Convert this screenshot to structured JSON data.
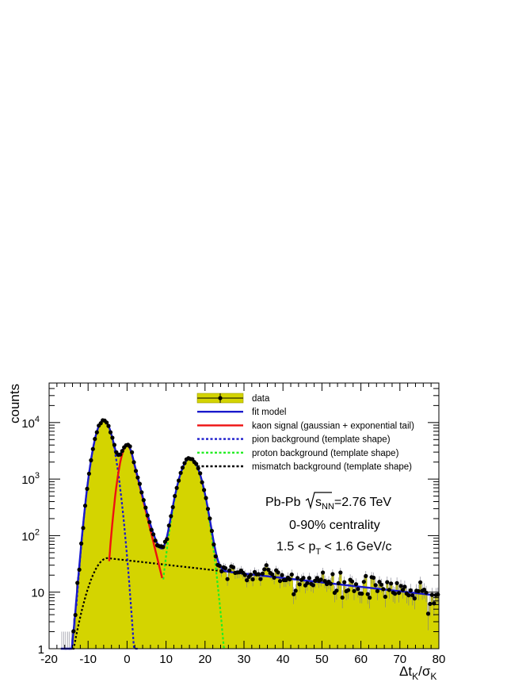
{
  "chart_data": {
    "type": "line",
    "ylabel": "counts",
    "xlabel": {
      "base": "Δt",
      "sub1": "K",
      "mid": "/σ",
      "sub2": "K"
    },
    "xlim": [
      -20,
      80
    ],
    "ylim": [
      1,
      50000
    ],
    "yscale": "log",
    "x_ticks": [
      "-20",
      "-10",
      "0",
      "10",
      "20",
      "30",
      "40",
      "50",
      "60",
      "70",
      "80"
    ],
    "y_ticks": [
      {
        "value": 1,
        "label": "1"
      },
      {
        "value": 10,
        "label": "10"
      },
      {
        "value": 100,
        "base": "10",
        "exp": "2"
      },
      {
        "value": 1000,
        "base": "10",
        "exp": "3"
      },
      {
        "value": 10000,
        "base": "10",
        "exp": "4"
      }
    ],
    "colors": {
      "fill": "#d4d400",
      "fit": "#1a1acc",
      "kaon": "#ee1111",
      "pion": "#1a1acc",
      "proton": "#22ee22",
      "mismatch": "#000000",
      "data": "#000000"
    },
    "legend": [
      {
        "label": "data",
        "style": "data"
      },
      {
        "label": "fit model",
        "style": "fit"
      },
      {
        "label": "kaon signal (gaussian + exponential tail)",
        "style": "kaon"
      },
      {
        "label": "pion background (template shape)",
        "style": "pion"
      },
      {
        "label": "proton background (template shape)",
        "style": "proton"
      },
      {
        "label": "mismatch background (template shape)",
        "style": "mismatch"
      }
    ],
    "annotations": {
      "system_pre": "Pb-Pb",
      "sqrt_s": "s",
      "sqrt_sub": "NN",
      "system_post": "=2.76 TeV",
      "centrality": "0-90% centrality",
      "pt_pre": "1.5 < p",
      "pt_sub": "T",
      "pt_post": " < 1.6 GeV/c"
    },
    "model": {
      "pion": {
        "mean": -6,
        "sigma": 1.8,
        "amplitude": 11000
      },
      "kaon": {
        "mean": 0,
        "sigma": 1.5,
        "amplitude": 3900,
        "tail_start": 1.2,
        "tail_slope": 0.65
      },
      "proton": {
        "mean": 16.2,
        "sigma": 2.2,
        "amplitude": 2300
      },
      "mismatch": {
        "peak_x": -5,
        "amplitude": 40,
        "rise_sigma": 3.2,
        "decay_slope": 0.018
      }
    },
    "series": [
      {
        "name": "data",
        "x_range": [
          -17,
          80
        ],
        "bin_width": 0.5
      },
      {
        "name": "fit model",
        "x_range": [
          -17,
          80
        ]
      },
      {
        "name": "kaon signal (gaussian + exponential tail)",
        "x_range": [
          -4.6,
          9
        ]
      },
      {
        "name": "pion background (template shape)",
        "x_range": [
          -13,
          3
        ]
      },
      {
        "name": "proton background (template shape)",
        "x_range": [
          9.3,
          25
        ]
      },
      {
        "name": "mismatch background (template shape)",
        "x_range": [
          -16,
          55
        ]
      }
    ]
  }
}
